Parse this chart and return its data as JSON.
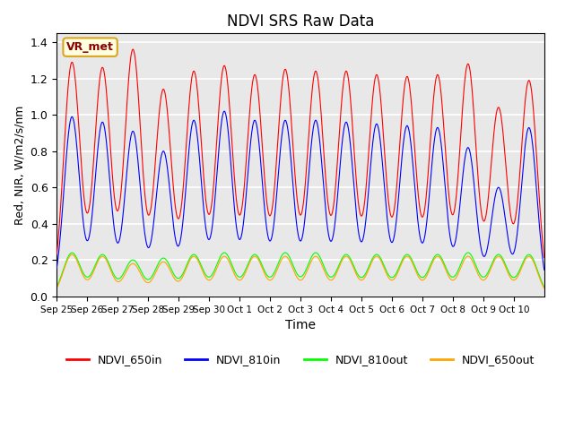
{
  "title": "NDVI SRS Raw Data",
  "xlabel": "Time",
  "ylabel": "Red, NIR, W/m2/s/nm",
  "ylim": [
    0,
    1.45
  ],
  "background_color": "#e8e8e8",
  "annotation": "VR_met",
  "legend": [
    "NDVI_650in",
    "NDVI_810in",
    "NDVI_810out",
    "NDVI_650out"
  ],
  "colors": [
    "red",
    "blue",
    "lime",
    "orange"
  ],
  "xtick_labels": [
    "Sep 25",
    "Sep 26",
    "Sep 27",
    "Sep 28",
    "Sep 29",
    "Sep 30",
    "Oct 1",
    "Oct 2",
    "Oct 3",
    "Oct 4",
    "Oct 5",
    "Oct 6",
    "Oct 7",
    "Oct 8",
    "Oct 9",
    "Oct 10"
  ],
  "day_peaks_650in": [
    1.29,
    1.26,
    1.36,
    1.14,
    1.24,
    1.27,
    1.22,
    1.25,
    1.24,
    1.24,
    1.22,
    1.21,
    1.22,
    1.28,
    1.04,
    1.19
  ],
  "day_peaks_810in": [
    0.99,
    0.96,
    0.91,
    0.8,
    0.97,
    1.02,
    0.97,
    0.97,
    0.97,
    0.96,
    0.95,
    0.94,
    0.93,
    0.82,
    0.6,
    0.93
  ],
  "day_peaks_810out": [
    0.24,
    0.23,
    0.2,
    0.21,
    0.23,
    0.24,
    0.23,
    0.24,
    0.24,
    0.23,
    0.23,
    0.23,
    0.23,
    0.24,
    0.23,
    0.23
  ],
  "day_peaks_650out": [
    0.23,
    0.22,
    0.18,
    0.19,
    0.22,
    0.22,
    0.22,
    0.22,
    0.22,
    0.22,
    0.22,
    0.22,
    0.22,
    0.22,
    0.22,
    0.22
  ],
  "ytick_labels": [
    0.0,
    0.2,
    0.4,
    0.6,
    0.8,
    1.0,
    1.2,
    1.4
  ]
}
